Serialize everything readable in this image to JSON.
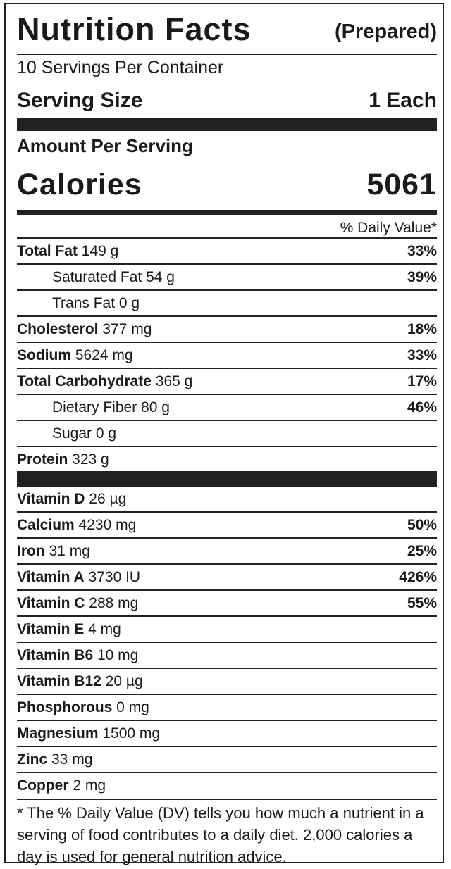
{
  "title": "Nutrition Facts",
  "subtitle": "(Prepared)",
  "servings_per_container": "10 Servings Per Container",
  "serving_size_label": "Serving Size",
  "serving_size_value": "1 Each",
  "amount_per_serving": "Amount Per Serving",
  "calories_label": "Calories",
  "calories_value": "5061",
  "daily_value_header": "% Daily Value*",
  "nutrients": [
    {
      "name": "Total Fat",
      "amount": " 149 g",
      "dv": "33%",
      "indent": false
    },
    {
      "name": "Saturated Fat",
      "amount": " 54 g",
      "dv": "39%",
      "indent": true
    },
    {
      "name": "Trans Fat",
      "amount": " 0 g",
      "dv": "",
      "indent": true
    },
    {
      "name": "Cholesterol",
      "amount": " 377 mg",
      "dv": "18%",
      "indent": false
    },
    {
      "name": "Sodium",
      "amount": " 5624 mg",
      "dv": "33%",
      "indent": false
    },
    {
      "name": "Total Carbohydrate",
      "amount": " 365 g",
      "dv": "17%",
      "indent": false
    },
    {
      "name": "Dietary Fiber",
      "amount": " 80 g",
      "dv": "46%",
      "indent": true
    },
    {
      "name": "Sugar",
      "amount": " 0 g",
      "dv": "",
      "indent": true
    },
    {
      "name": "Protein",
      "amount": " 323 g",
      "dv": "",
      "indent": false
    }
  ],
  "vitamins": [
    {
      "name": "Vitamin D",
      "amount": " 26 µg",
      "dv": ""
    },
    {
      "name": "Calcium",
      "amount": " 4230 mg",
      "dv": "50%"
    },
    {
      "name": "Iron",
      "amount": " 31 mg",
      "dv": "25%"
    },
    {
      "name": "Vitamin A",
      "amount": " 3730 IU",
      "dv": "426%"
    },
    {
      "name": "Vitamin C",
      "amount": " 288 mg",
      "dv": "55%"
    },
    {
      "name": "Vitamin E",
      "amount": " 4 mg",
      "dv": ""
    },
    {
      "name": "Vitamin B6",
      "amount": " 10 mg",
      "dv": ""
    },
    {
      "name": "Vitamin B12",
      "amount": " 20 µg",
      "dv": ""
    },
    {
      "name": "Phosphorous",
      "amount": " 0 mg",
      "dv": ""
    },
    {
      "name": "Magnesium",
      "amount": " 1500 mg",
      "dv": ""
    },
    {
      "name": "Zinc",
      "amount": " 33 mg",
      "dv": ""
    },
    {
      "name": "Copper",
      "amount": " 2 mg",
      "dv": ""
    }
  ],
  "footnote": "* The % Daily Value (DV) tells you how much a nutrient in a serving of food contributes to a daily diet. 2,000 calories a day is used for general nutrition advice."
}
